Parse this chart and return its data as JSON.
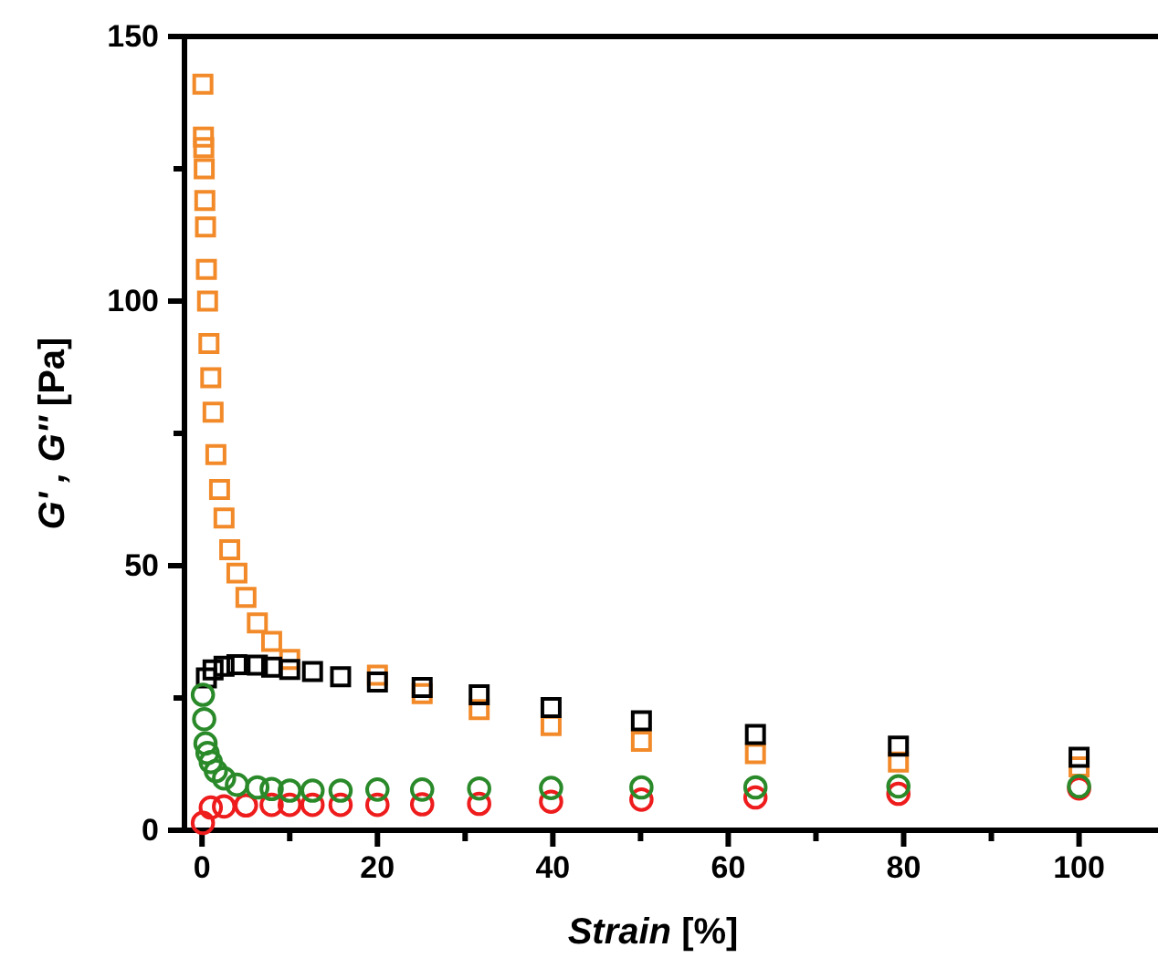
{
  "chart_data": {
    "type": "scatter",
    "xlabel": "Strain [%]",
    "ylabel": "G' , G'' [Pa]",
    "xlim": [
      -2,
      109
    ],
    "ylim": [
      0,
      150
    ],
    "xticks": [
      0,
      {
        "value": 10,
        "label": null
      },
      20,
      {
        "value": 30,
        "label": null
      },
      40,
      {
        "value": 50,
        "label": null
      },
      60,
      {
        "value": 70,
        "label": null
      },
      80,
      {
        "value": 90,
        "label": null
      },
      100
    ],
    "yticks": [
      0,
      {
        "value": 25,
        "label": null
      },
      50,
      {
        "value": 75,
        "label": null
      },
      100,
      {
        "value": 125,
        "label": null
      },
      150
    ],
    "series": [
      {
        "color": "#f28a2a",
        "marker": "square",
        "x": [
          0.1,
          0.16,
          0.2,
          0.25,
          0.32,
          0.4,
          0.5,
          0.63,
          0.79,
          1.0,
          1.26,
          1.58,
          2.0,
          2.51,
          3.16,
          3.98,
          5.01,
          6.31,
          7.94,
          10,
          20,
          25.1,
          31.6,
          39.8,
          50.1,
          63.1,
          79.4,
          100
        ],
        "values": [
          141,
          131,
          129,
          125,
          119,
          114,
          106,
          100,
          92,
          85.5,
          79,
          71,
          64.4,
          59,
          53,
          48.6,
          44,
          39.2,
          35.7,
          32.3,
          29.3,
          25.8,
          22.8,
          19.8,
          16.8,
          14.5,
          12.9,
          12
        ]
      },
      {
        "color": "#000000",
        "marker": "square",
        "x": [
          0.5,
          1.26,
          2.51,
          3.98,
          6.31,
          7.94,
          10,
          12.6,
          15.8,
          20,
          25.1,
          31.6,
          39.8,
          50.1,
          63.1,
          79.4,
          100
        ],
        "values": [
          28.8,
          30.3,
          31,
          31.3,
          31.2,
          30.8,
          30.4,
          30,
          29,
          28,
          27,
          25.6,
          23.2,
          20.7,
          18.1,
          15.9,
          13.8
        ]
      },
      {
        "color": "#ee1c1c",
        "marker": "circle",
        "x": [
          0.1,
          1.0,
          2.51,
          5.01,
          7.94,
          10,
          12.6,
          15.8,
          20,
          25.1,
          31.6,
          39.8,
          50.1,
          63.1,
          79.4,
          100
        ],
        "values": [
          1.4,
          4.3,
          4.5,
          4.7,
          4.8,
          4.8,
          4.8,
          4.8,
          4.8,
          4.9,
          5.0,
          5.4,
          5.8,
          6.2,
          6.9,
          7.9
        ]
      },
      {
        "color": "#2a8a2a",
        "marker": "circle",
        "x": [
          0.1,
          0.25,
          0.4,
          0.63,
          1.0,
          1.58,
          2.51,
          3.98,
          6.31,
          7.94,
          10,
          12.6,
          15.8,
          20,
          25.1,
          31.6,
          39.8,
          50.1,
          63.1,
          79.4,
          100
        ],
        "values": [
          25.6,
          21,
          16.4,
          14.6,
          12.9,
          11.2,
          9.8,
          8.6,
          8.1,
          7.8,
          7.5,
          7.5,
          7.5,
          7.7,
          7.7,
          7.9,
          8.0,
          8.1,
          8.1,
          8.3,
          8.3
        ]
      }
    ]
  }
}
